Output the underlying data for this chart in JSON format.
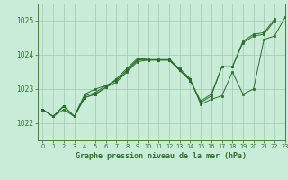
{
  "title": "Graphe pression niveau de la mer (hPa)",
  "background_color": "#c8ecd8",
  "grid_color": "#a0c8b0",
  "line_color": "#2d6e2d",
  "xlim": [
    -0.5,
    23
  ],
  "ylim": [
    1021.5,
    1025.5
  ],
  "yticks": [
    1022,
    1023,
    1024,
    1025
  ],
  "xticks": [
    0,
    1,
    2,
    3,
    4,
    5,
    6,
    7,
    8,
    9,
    10,
    11,
    12,
    13,
    14,
    15,
    16,
    17,
    18,
    19,
    20,
    21,
    22,
    23
  ],
  "series": [
    [
      1022.4,
      1022.2,
      1022.4,
      1022.2,
      1022.75,
      1022.85,
      1023.05,
      1023.3,
      1023.6,
      1023.9,
      1023.85,
      1023.85,
      1023.85,
      1023.55,
      1023.25,
      1022.65,
      1022.85,
      1023.65,
      1023.65,
      1024.4,
      1024.6,
      1024.65,
      1025.05,
      null
    ],
    [
      1022.4,
      1022.2,
      1022.5,
      1022.2,
      1022.85,
      1023.0,
      1023.1,
      1023.25,
      1023.55,
      1023.85,
      1023.9,
      1023.9,
      1023.9,
      1023.55,
      1023.3,
      null,
      null,
      null,
      null,
      null,
      null,
      null,
      null,
      null
    ],
    [
      1022.4,
      1022.2,
      1022.5,
      1022.2,
      1022.8,
      1022.9,
      1023.1,
      1023.25,
      1023.55,
      1023.85,
      1023.85,
      1023.85,
      1023.85,
      1023.6,
      1023.3,
      1022.55,
      1022.7,
      1022.8,
      1023.5,
      1022.85,
      1023.0,
      1024.45,
      1024.55,
      1025.1
    ],
    [
      1022.4,
      1022.2,
      1022.5,
      1022.2,
      1022.75,
      1022.85,
      1023.05,
      1023.2,
      1023.5,
      1023.8,
      1023.85,
      1023.85,
      1023.85,
      1023.55,
      1023.25,
      1022.6,
      1022.8,
      1023.65,
      1023.65,
      1024.35,
      1024.55,
      1024.6,
      1025.0,
      null
    ]
  ]
}
